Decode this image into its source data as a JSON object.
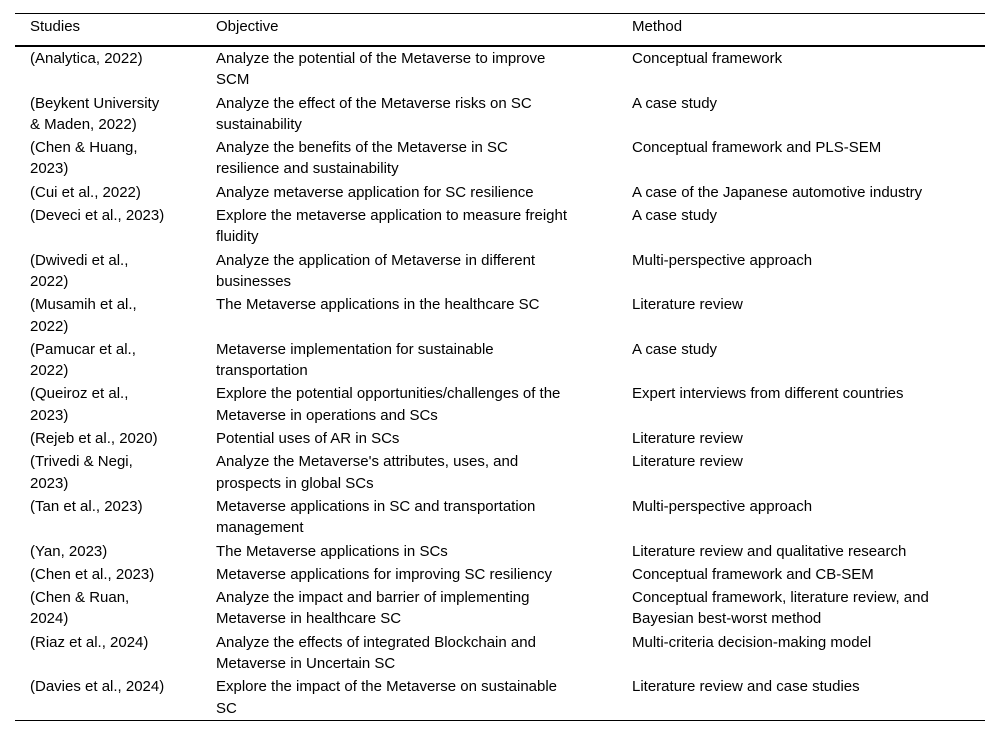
{
  "colors": {
    "background": "#ffffff",
    "text": "#000000",
    "rule": "#000000"
  },
  "table": {
    "columns": [
      "Studies",
      "Objective",
      "Method"
    ],
    "rows": [
      {
        "studies": "(Analytica, 2022)",
        "objective": "Analyze the potential of the Metaverse to improve\nSCM",
        "method": "Conceptual framework"
      },
      {
        "studies": "(Beykent University\n& Maden, 2022)",
        "objective": "Analyze the effect of the Metaverse risks on SC\nsustainability",
        "method": "A case study"
      },
      {
        "studies": "(Chen & Huang,\n2023)",
        "objective": "Analyze the benefits of the Metaverse in SC\nresilience and sustainability",
        "method": "Conceptual framework and PLS-SEM"
      },
      {
        "studies": "(Cui et al., 2022)",
        "objective": "Analyze metaverse application for SC resilience",
        "method": "A case of the Japanese automotive industry"
      },
      {
        "studies": "(Deveci et al., 2023)",
        "objective": "Explore the metaverse application to measure freight\nfluidity",
        "method": "A case study"
      },
      {
        "studies": "(Dwivedi et al.,\n2022)",
        "objective": "Analyze the application of Metaverse in different\nbusinesses",
        "method": "Multi-perspective approach"
      },
      {
        "studies": "(Musamih et al.,\n2022)",
        "objective": "The Metaverse applications in the healthcare SC",
        "method": "Literature review"
      },
      {
        "studies": "(Pamucar et al.,\n2022)",
        "objective": "Metaverse implementation for sustainable\ntransportation",
        "method": "A case study"
      },
      {
        "studies": "(Queiroz et al.,\n2023)",
        "objective": "Explore the potential opportunities/challenges of the\nMetaverse in operations and SCs",
        "method": "Expert interviews from different countries"
      },
      {
        "studies": "(Rejeb et al., 2020)",
        "objective": "Potential uses of AR in SCs",
        "method": "Literature review"
      },
      {
        "studies": "(Trivedi & Negi,\n2023)",
        "objective": "Analyze the Metaverse's attributes, uses, and\nprospects in global SCs",
        "method": "Literature review"
      },
      {
        "studies": "(Tan et al., 2023)",
        "objective": "Metaverse applications in SC and transportation\nmanagement",
        "method": "Multi-perspective approach"
      },
      {
        "studies": "(Yan, 2023)",
        "objective": "The Metaverse applications in SCs",
        "method": "Literature review and qualitative research"
      },
      {
        "studies": "(Chen et al., 2023)",
        "objective": "Metaverse applications for improving SC resiliency",
        "method": "Conceptual framework and CB-SEM"
      },
      {
        "studies": "(Chen & Ruan,\n2024)",
        "objective": "Analyze the impact and barrier of implementing\nMetaverse in healthcare SC",
        "method": "Conceptual framework, literature review, and\nBayesian best-worst method"
      },
      {
        "studies": "(Riaz et al., 2024)",
        "objective": "Analyze the effects of integrated Blockchain and\nMetaverse in Uncertain SC",
        "method": "Multi-criteria decision-making model"
      },
      {
        "studies": "(Davies et al., 2024)",
        "objective": "Explore the impact of the Metaverse on sustainable\nSC",
        "method": "Literature review and case studies"
      }
    ]
  }
}
